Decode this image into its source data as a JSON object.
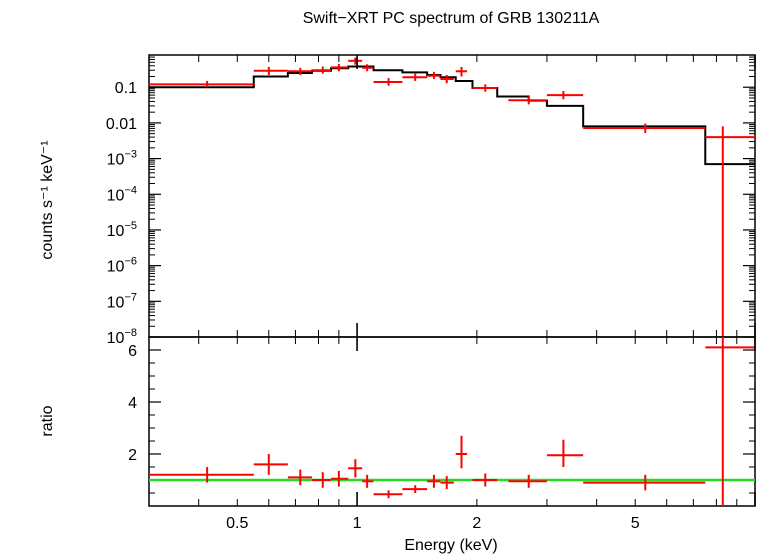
{
  "chart_data": [
    {
      "panel": "spectrum",
      "type": "line",
      "title": "Swift−XRT PC spectrum of GRB 130211A",
      "ylabel": "counts s⁻¹ keV⁻¹",
      "xscale": "log",
      "yscale": "log",
      "xlim": [
        0.3,
        10
      ],
      "ylim": [
        1e-08,
        0.8
      ],
      "yticks": [
        {
          "value": 0.1,
          "label": "0.1"
        },
        {
          "value": 0.01,
          "label": "0.01"
        },
        {
          "value": 0.001,
          "base": "10",
          "exp": "−3"
        },
        {
          "value": 0.0001,
          "base": "10",
          "exp": "−4"
        },
        {
          "value": 1e-05,
          "base": "10",
          "exp": "−5"
        },
        {
          "value": 1e-06,
          "base": "10",
          "exp": "−6"
        },
        {
          "value": 1e-07,
          "base": "10",
          "exp": "−7"
        },
        {
          "value": 1e-08,
          "base": "10",
          "exp": "−8"
        }
      ],
      "data_points": [
        {
          "x": 0.42,
          "xlo": 0.3,
          "xhi": 0.55,
          "y": 0.12,
          "ylo": 0.1,
          "yhi": 0.15
        },
        {
          "x": 0.6,
          "xlo": 0.55,
          "xhi": 0.67,
          "y": 0.29,
          "ylo": 0.22,
          "yhi": 0.37
        },
        {
          "x": 0.72,
          "xlo": 0.67,
          "xhi": 0.77,
          "y": 0.28,
          "ylo": 0.22,
          "yhi": 0.35
        },
        {
          "x": 0.82,
          "xlo": 0.77,
          "xhi": 0.86,
          "y": 0.3,
          "ylo": 0.24,
          "yhi": 0.38
        },
        {
          "x": 0.9,
          "xlo": 0.86,
          "xhi": 0.95,
          "y": 0.36,
          "ylo": 0.28,
          "yhi": 0.45
        },
        {
          "x": 0.99,
          "xlo": 0.95,
          "xhi": 1.03,
          "y": 0.55,
          "ylo": 0.43,
          "yhi": 0.68
        },
        {
          "x": 1.06,
          "xlo": 1.03,
          "xhi": 1.1,
          "y": 0.35,
          "ylo": 0.28,
          "yhi": 0.44
        },
        {
          "x": 1.2,
          "xlo": 1.1,
          "xhi": 1.3,
          "y": 0.14,
          "ylo": 0.11,
          "yhi": 0.18
        },
        {
          "x": 1.4,
          "xlo": 1.3,
          "xhi": 1.5,
          "y": 0.19,
          "ylo": 0.15,
          "yhi": 0.24
        },
        {
          "x": 1.56,
          "xlo": 1.5,
          "xhi": 1.62,
          "y": 0.21,
          "ylo": 0.17,
          "yhi": 0.27
        },
        {
          "x": 1.68,
          "xlo": 1.62,
          "xhi": 1.75,
          "y": 0.17,
          "ylo": 0.13,
          "yhi": 0.22
        },
        {
          "x": 1.83,
          "xlo": 1.77,
          "xhi": 1.89,
          "y": 0.28,
          "ylo": 0.2,
          "yhi": 0.37
        },
        {
          "x": 2.1,
          "xlo": 1.95,
          "xhi": 2.25,
          "y": 0.095,
          "ylo": 0.075,
          "yhi": 0.12
        },
        {
          "x": 2.7,
          "xlo": 2.4,
          "xhi": 3.0,
          "y": 0.043,
          "ylo": 0.033,
          "yhi": 0.056
        },
        {
          "x": 3.3,
          "xlo": 3.0,
          "xhi": 3.7,
          "y": 0.06,
          "ylo": 0.046,
          "yhi": 0.078
        },
        {
          "x": 5.3,
          "xlo": 3.7,
          "xhi": 7.5,
          "y": 0.0072,
          "ylo": 0.0052,
          "yhi": 0.0096
        },
        {
          "x": 8.3,
          "xlo": 7.5,
          "xhi": 10,
          "y": 0.004,
          "ylo": 1e-08,
          "yhi": 0.008
        }
      ],
      "model_steps": [
        {
          "xlo": 0.3,
          "xhi": 0.55,
          "y": 0.1
        },
        {
          "xlo": 0.55,
          "xhi": 0.67,
          "y": 0.2
        },
        {
          "xlo": 0.67,
          "xhi": 0.77,
          "y": 0.25
        },
        {
          "xlo": 0.77,
          "xhi": 0.86,
          "y": 0.29
        },
        {
          "xlo": 0.86,
          "xhi": 0.95,
          "y": 0.34
        },
        {
          "xlo": 0.95,
          "xhi": 1.1,
          "y": 0.38
        },
        {
          "xlo": 1.1,
          "xhi": 1.3,
          "y": 0.3
        },
        {
          "xlo": 1.3,
          "xhi": 1.5,
          "y": 0.26
        },
        {
          "xlo": 1.5,
          "xhi": 1.62,
          "y": 0.22
        },
        {
          "xlo": 1.62,
          "xhi": 1.77,
          "y": 0.19
        },
        {
          "xlo": 1.77,
          "xhi": 1.95,
          "y": 0.15
        },
        {
          "xlo": 1.95,
          "xhi": 2.25,
          "y": 0.095
        },
        {
          "xlo": 2.25,
          "xhi": 2.7,
          "y": 0.055
        },
        {
          "xlo": 2.7,
          "xhi": 3.0,
          "y": 0.042
        },
        {
          "xlo": 3.0,
          "xhi": 3.7,
          "y": 0.03
        },
        {
          "xlo": 3.7,
          "xhi": 7.5,
          "y": 0.008
        },
        {
          "xlo": 7.5,
          "xhi": 10,
          "y": 0.0007
        }
      ]
    },
    {
      "panel": "ratio",
      "type": "scatter",
      "xlabel": "Energy (keV)",
      "ylabel": "ratio",
      "xscale": "log",
      "xlim": [
        0.3,
        10
      ],
      "ylim": [
        0,
        6.5
      ],
      "yticks": [
        2,
        4,
        6
      ],
      "xticks": [
        {
          "value": 0.5,
          "label": "0.5"
        },
        {
          "value": 1,
          "label": "1"
        },
        {
          "value": 2,
          "label": "2"
        },
        {
          "value": 5,
          "label": "5"
        }
      ],
      "reference_line": {
        "y": 1,
        "color": "#22dd22"
      },
      "data_points": [
        {
          "x": 0.42,
          "xlo": 0.3,
          "xhi": 0.55,
          "y": 1.2,
          "ylo": 0.9,
          "yhi": 1.5
        },
        {
          "x": 0.6,
          "xlo": 0.55,
          "xhi": 0.67,
          "y": 1.6,
          "ylo": 1.2,
          "yhi": 2.0
        },
        {
          "x": 0.72,
          "xlo": 0.67,
          "xhi": 0.77,
          "y": 1.1,
          "ylo": 0.8,
          "yhi": 1.4
        },
        {
          "x": 0.82,
          "xlo": 0.77,
          "xhi": 0.86,
          "y": 1.0,
          "ylo": 0.7,
          "yhi": 1.3
        },
        {
          "x": 0.9,
          "xlo": 0.86,
          "xhi": 0.95,
          "y": 1.05,
          "ylo": 0.75,
          "yhi": 1.35
        },
        {
          "x": 0.99,
          "xlo": 0.95,
          "xhi": 1.03,
          "y": 1.45,
          "ylo": 1.1,
          "yhi": 1.8
        },
        {
          "x": 1.06,
          "xlo": 1.03,
          "xhi": 1.1,
          "y": 0.95,
          "ylo": 0.7,
          "yhi": 1.2
        },
        {
          "x": 1.2,
          "xlo": 1.1,
          "xhi": 1.3,
          "y": 0.45,
          "ylo": 0.3,
          "yhi": 0.6
        },
        {
          "x": 1.4,
          "xlo": 1.3,
          "xhi": 1.5,
          "y": 0.65,
          "ylo": 0.5,
          "yhi": 0.8
        },
        {
          "x": 1.56,
          "xlo": 1.5,
          "xhi": 1.62,
          "y": 0.95,
          "ylo": 0.7,
          "yhi": 1.2
        },
        {
          "x": 1.68,
          "xlo": 1.62,
          "xhi": 1.75,
          "y": 0.9,
          "ylo": 0.65,
          "yhi": 1.15
        },
        {
          "x": 1.83,
          "xlo": 1.77,
          "xhi": 1.89,
          "y": 2.0,
          "ylo": 1.45,
          "yhi": 2.7
        },
        {
          "x": 2.1,
          "xlo": 1.95,
          "xhi": 2.25,
          "y": 1.0,
          "ylo": 0.75,
          "yhi": 1.25
        },
        {
          "x": 2.7,
          "xlo": 2.4,
          "xhi": 3.0,
          "y": 0.95,
          "ylo": 0.7,
          "yhi": 1.2
        },
        {
          "x": 3.3,
          "xlo": 3.0,
          "xhi": 3.7,
          "y": 1.95,
          "ylo": 1.5,
          "yhi": 2.55
        },
        {
          "x": 5.3,
          "xlo": 3.7,
          "xhi": 7.5,
          "y": 0.9,
          "ylo": 0.6,
          "yhi": 1.2
        },
        {
          "x": 8.3,
          "xlo": 7.5,
          "xhi": 10,
          "y": 6.1,
          "ylo": 0,
          "yhi": 6.5
        }
      ]
    }
  ],
  "colors": {
    "data": "#ff0000",
    "model": "#000000",
    "ratio_line": "#22dd22",
    "axes": "#000000"
  }
}
